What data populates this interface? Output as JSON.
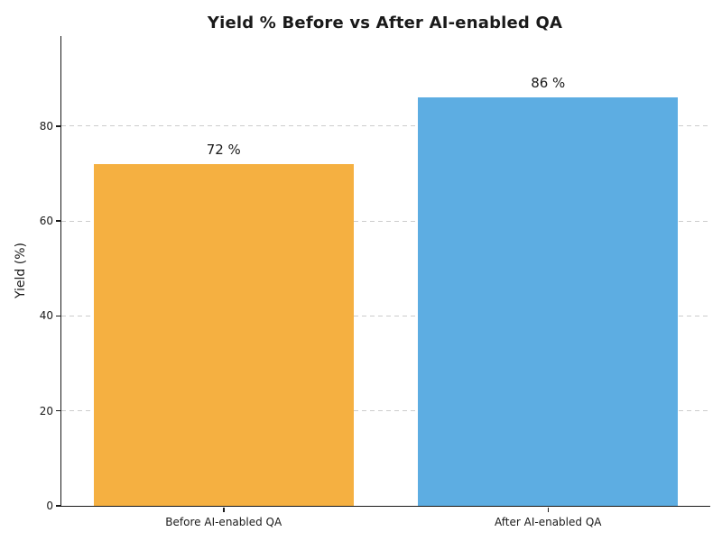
{
  "chart_data": {
    "type": "bar",
    "title": "Yield % Before vs After AI-enabled QA",
    "ylabel": "Yield (%)",
    "xlabel": "",
    "categories": [
      "Before AI-enabled QA",
      "After AI-enabled QA"
    ],
    "values": [
      72,
      86
    ],
    "value_labels": [
      "72 %",
      "86 %"
    ],
    "bar_colors": [
      "#F5B041",
      "#5DADE2"
    ],
    "ylim": [
      0,
      99
    ],
    "yticks": [
      0,
      20,
      40,
      60,
      80
    ],
    "grid": {
      "axis": "y",
      "style": "dashed",
      "color": "#cccccc"
    },
    "legend": "none",
    "bar_width_fraction": 0.8,
    "axis_color": "#1a1a1a",
    "text_color": "#1a1a1a",
    "background_color": "#ffffff"
  }
}
